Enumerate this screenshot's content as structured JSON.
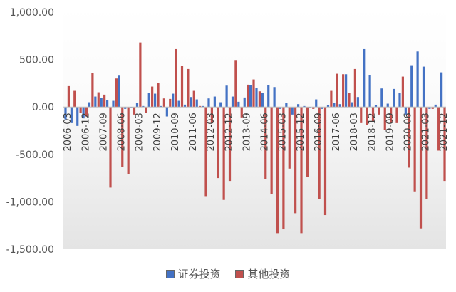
{
  "colors": {
    "series_0": "#4472C4",
    "series_1": "#C0504D",
    "plot_bg": "#eaeaea",
    "zero_line": "#c0c0c0",
    "tick_text": "#404040"
  },
  "chart_data": {
    "type": "bar",
    "ylim": [
      -1500,
      1000
    ],
    "yticks": [
      1000,
      500,
      0,
      -500,
      -1000,
      -1500
    ],
    "ytick_labels": [
      "1,000.00",
      "500.00",
      "0.00",
      "-500.00",
      "-1,000.00",
      "-1,500.00"
    ],
    "xtick_labels": [
      "2006-03",
      "2006-12",
      "2007-09",
      "2008-06",
      "2009-03",
      "2009-12",
      "2010-09",
      "2011-06",
      "2012-03",
      "2012-12",
      "2013-09",
      "2014-06",
      "2015-03",
      "2015-12",
      "2016-09",
      "2017-06",
      "2018-03",
      "2018-12",
      "2019-09",
      "2020-06",
      "2021-03",
      "2021-12"
    ],
    "categories": [
      "2006-03",
      "2006-06",
      "2006-09",
      "2006-12",
      "2007-03",
      "2007-06",
      "2007-09",
      "2007-12",
      "2008-03",
      "2008-06",
      "2008-09",
      "2008-12",
      "2009-03",
      "2009-06",
      "2009-09",
      "2009-12",
      "2010-03",
      "2010-06",
      "2010-09",
      "2010-12",
      "2011-03",
      "2011-06",
      "2011-09",
      "2011-12",
      "2012-03",
      "2012-06",
      "2012-09",
      "2012-12",
      "2013-03",
      "2013-06",
      "2013-09",
      "2013-12",
      "2014-03",
      "2014-06",
      "2014-09",
      "2014-12",
      "2015-03",
      "2015-06",
      "2015-09",
      "2015-12",
      "2016-03",
      "2016-06",
      "2016-09",
      "2016-12",
      "2017-03",
      "2017-06",
      "2017-09",
      "2017-12",
      "2018-03",
      "2018-06",
      "2018-09",
      "2018-12",
      "2019-03",
      "2019-06",
      "2019-09",
      "2019-12",
      "2020-03",
      "2020-06",
      "2020-09",
      "2020-12",
      "2021-03",
      "2021-06",
      "2021-09",
      "2021-12"
    ],
    "series": [
      {
        "name": "证券投资",
        "values": [
          -130,
          -170,
          -200,
          -120,
          50,
          110,
          95,
          75,
          65,
          330,
          -20,
          -10,
          40,
          10,
          150,
          140,
          10,
          -100,
          140,
          65,
          25,
          105,
          80,
          10,
          90,
          110,
          50,
          225,
          110,
          55,
          100,
          230,
          200,
          150,
          230,
          210,
          -20,
          40,
          -80,
          30,
          10,
          -10,
          80,
          -20,
          20,
          40,
          30,
          345,
          50,
          105,
          610,
          335,
          20,
          195,
          35,
          190,
          150,
          -80,
          440,
          585,
          425,
          -20,
          25,
          365
        ]
      },
      {
        "name": "其他投资",
        "values": [
          220,
          170,
          -60,
          -100,
          360,
          155,
          130,
          -850,
          300,
          -630,
          -710,
          -80,
          680,
          -60,
          215,
          255,
          90,
          85,
          610,
          430,
          400,
          170,
          10,
          -940,
          -170,
          -750,
          -980,
          -780,
          495,
          -110,
          235,
          290,
          165,
          -760,
          -920,
          -1330,
          -1290,
          -650,
          -1120,
          -1330,
          -740,
          -20,
          -970,
          -1140,
          170,
          350,
          345,
          150,
          400,
          -170,
          -190,
          -160,
          -80,
          -240,
          -170,
          -170,
          320,
          -640,
          -890,
          -1280,
          -970,
          -20,
          -460,
          -780
        ]
      }
    ]
  }
}
